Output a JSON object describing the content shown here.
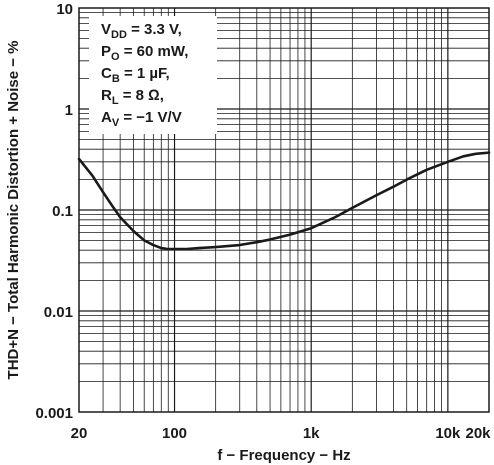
{
  "chart_data": {
    "type": "line",
    "title": "",
    "xlabel": "f − Frequency − Hz",
    "ylabel": "THD+N − Total Harmonic Distortion + Noise − %",
    "xscale": "log",
    "yscale": "log",
    "xlim": [
      20,
      20000
    ],
    "ylim": [
      0.001,
      10
    ],
    "grid": true,
    "x_tick_labels": [
      {
        "value": 20,
        "label": "20"
      },
      {
        "value": 100,
        "label": "100"
      },
      {
        "value": 1000,
        "label": "1k"
      },
      {
        "value": 10000,
        "label": "10k"
      },
      {
        "value": 20000,
        "label": "20k"
      }
    ],
    "y_tick_labels": [
      {
        "value": 10,
        "label": "10"
      },
      {
        "value": 1,
        "label": "1"
      },
      {
        "value": 0.1,
        "label": "0.1"
      },
      {
        "value": 0.01,
        "label": "0.01"
      },
      {
        "value": 0.001,
        "label": "0.001"
      }
    ],
    "annotation": {
      "lines": [
        {
          "main": "V",
          "sub": "DD",
          "rest": " = 3.3 V,"
        },
        {
          "main": "P",
          "sub": "O",
          "rest": " = 60 mW,"
        },
        {
          "main": "C",
          "sub": "B",
          "rest": " = 1 µF,"
        },
        {
          "main": "R",
          "sub": "L",
          "rest": " = 8 Ω,"
        },
        {
          "main": "A",
          "sub": "V",
          "rest": " = −1 V/V"
        }
      ]
    },
    "series": [
      {
        "x": [
          20,
          25,
          30,
          35,
          40,
          50,
          60,
          70,
          80,
          90,
          100,
          120,
          150,
          200,
          300,
          400,
          500,
          700,
          1000,
          1500,
          2000,
          3000,
          4000,
          5000,
          7000,
          10000,
          13000,
          16000,
          20000
        ],
        "y": [
          0.32,
          0.22,
          0.15,
          0.11,
          0.085,
          0.062,
          0.05,
          0.045,
          0.042,
          0.041,
          0.041,
          0.041,
          0.042,
          0.043,
          0.045,
          0.048,
          0.051,
          0.057,
          0.066,
          0.085,
          0.105,
          0.14,
          0.17,
          0.2,
          0.25,
          0.3,
          0.34,
          0.36,
          0.37
        ]
      }
    ]
  }
}
